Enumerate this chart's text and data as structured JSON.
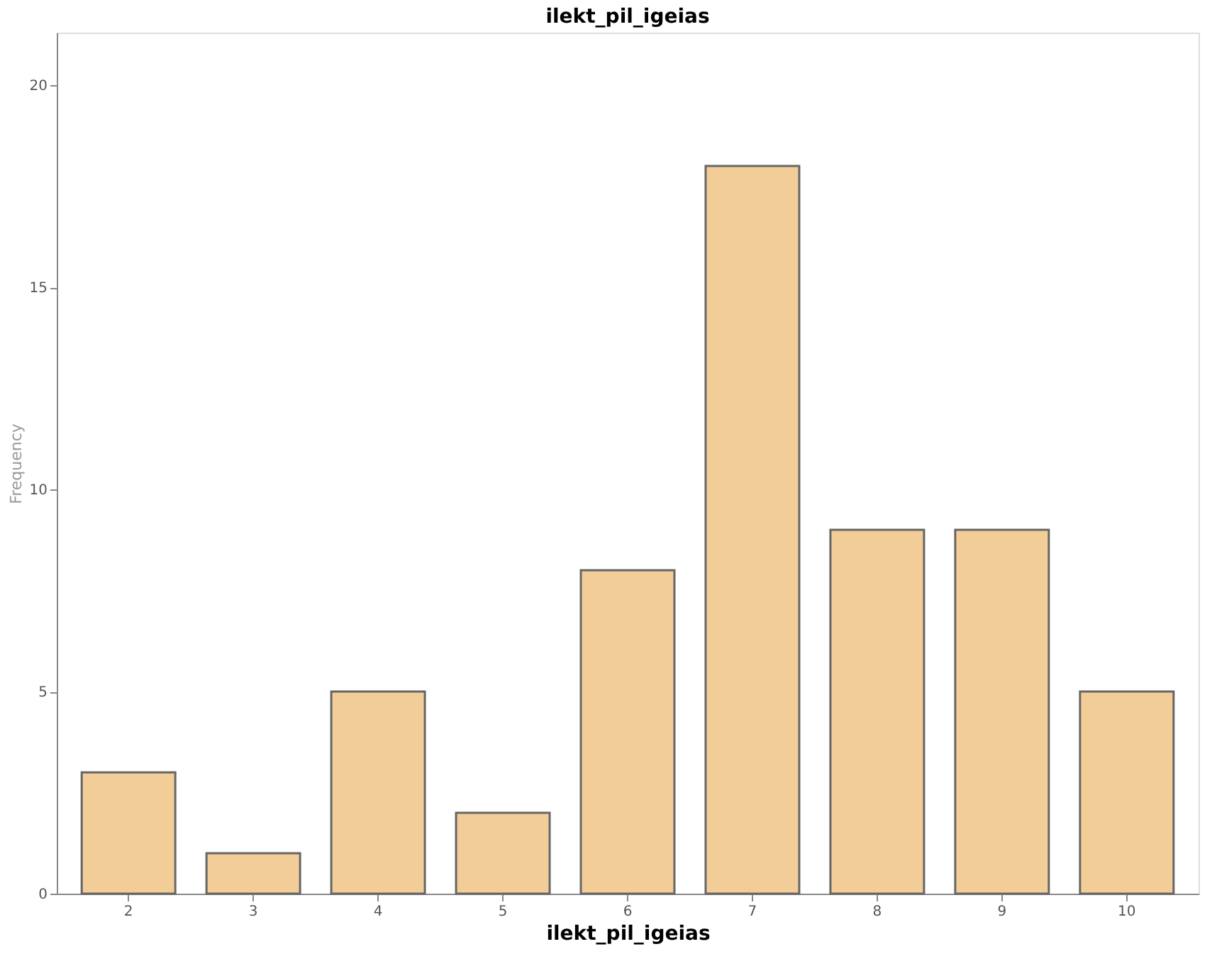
{
  "chart_data": {
    "type": "bar",
    "title": "ilekt_pil_igeias",
    "xlabel": "ilekt_pil_igeias",
    "ylabel": "Frequency",
    "categories": [
      "2",
      "3",
      "4",
      "5",
      "6",
      "7",
      "8",
      "9",
      "10"
    ],
    "values": [
      3,
      1,
      5,
      2,
      8,
      18,
      9,
      9,
      5
    ],
    "color": "#f3cd98",
    "ylim": [
      0,
      21.3
    ],
    "yticks": [
      0,
      5,
      10,
      15,
      20
    ],
    "grid": false
  }
}
